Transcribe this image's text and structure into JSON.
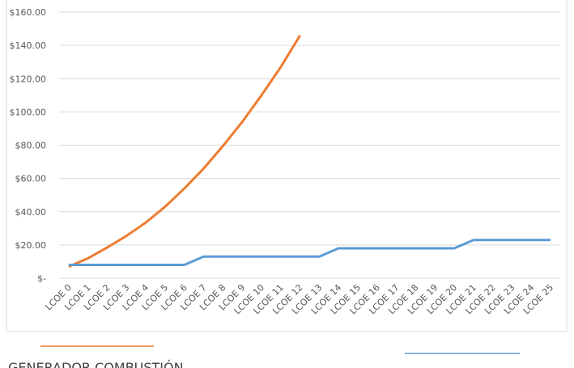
{
  "chart_data": {
    "type": "line",
    "categories": [
      "LCOE 0",
      "LCOE 1",
      "LCOE 2",
      "LCOE 3",
      "LCOE 4",
      "LCOE 5",
      "LCOE 6",
      "LCOE 7",
      "LCOE 8",
      "LCOE 9",
      "LCOE 10",
      "LCOE 11",
      "LCOE 12",
      "LCOE 13",
      "LCOE 14",
      "LCOE 15",
      "LCOE 16",
      "LCOE 17",
      "LCOE 18",
      "LCOE 19",
      "LCOE 20",
      "LCOE 21",
      "LCOE 22",
      "LCOE 23",
      "LCOE 24",
      "LCOE 25"
    ],
    "series": [
      {
        "name": "GENERADOR COMBUSTIÓN",
        "color": "#ed7d31",
        "values": [
          7,
          12,
          18.5,
          25.5,
          33.5,
          43,
          54,
          66,
          79.5,
          94,
          110,
          127,
          146,
          null,
          null,
          null,
          null,
          null,
          null,
          null,
          null,
          null,
          null,
          null,
          null,
          null
        ]
      },
      {
        "color": "#5b9bd5",
        "values": [
          8,
          8,
          8,
          8,
          8,
          8,
          8,
          13,
          13,
          13,
          13,
          13,
          13,
          13,
          18,
          18,
          18,
          18,
          18,
          18,
          18,
          23,
          23,
          23,
          23,
          23
        ]
      }
    ],
    "ylim": [
      0,
      160
    ],
    "yticks": [
      {
        "value": 0,
        "label": "$-"
      },
      {
        "value": 20,
        "label": "$20.00"
      },
      {
        "value": 40,
        "label": "$40.00"
      },
      {
        "value": 60,
        "label": "$60.00"
      },
      {
        "value": 80,
        "label": "$80.00"
      },
      {
        "value": 100,
        "label": "$100.00"
      },
      {
        "value": 120,
        "label": "$120.00"
      },
      {
        "value": 140,
        "label": "$140.00"
      },
      {
        "value": 160,
        "label": "$160.00"
      }
    ],
    "grid": true
  }
}
